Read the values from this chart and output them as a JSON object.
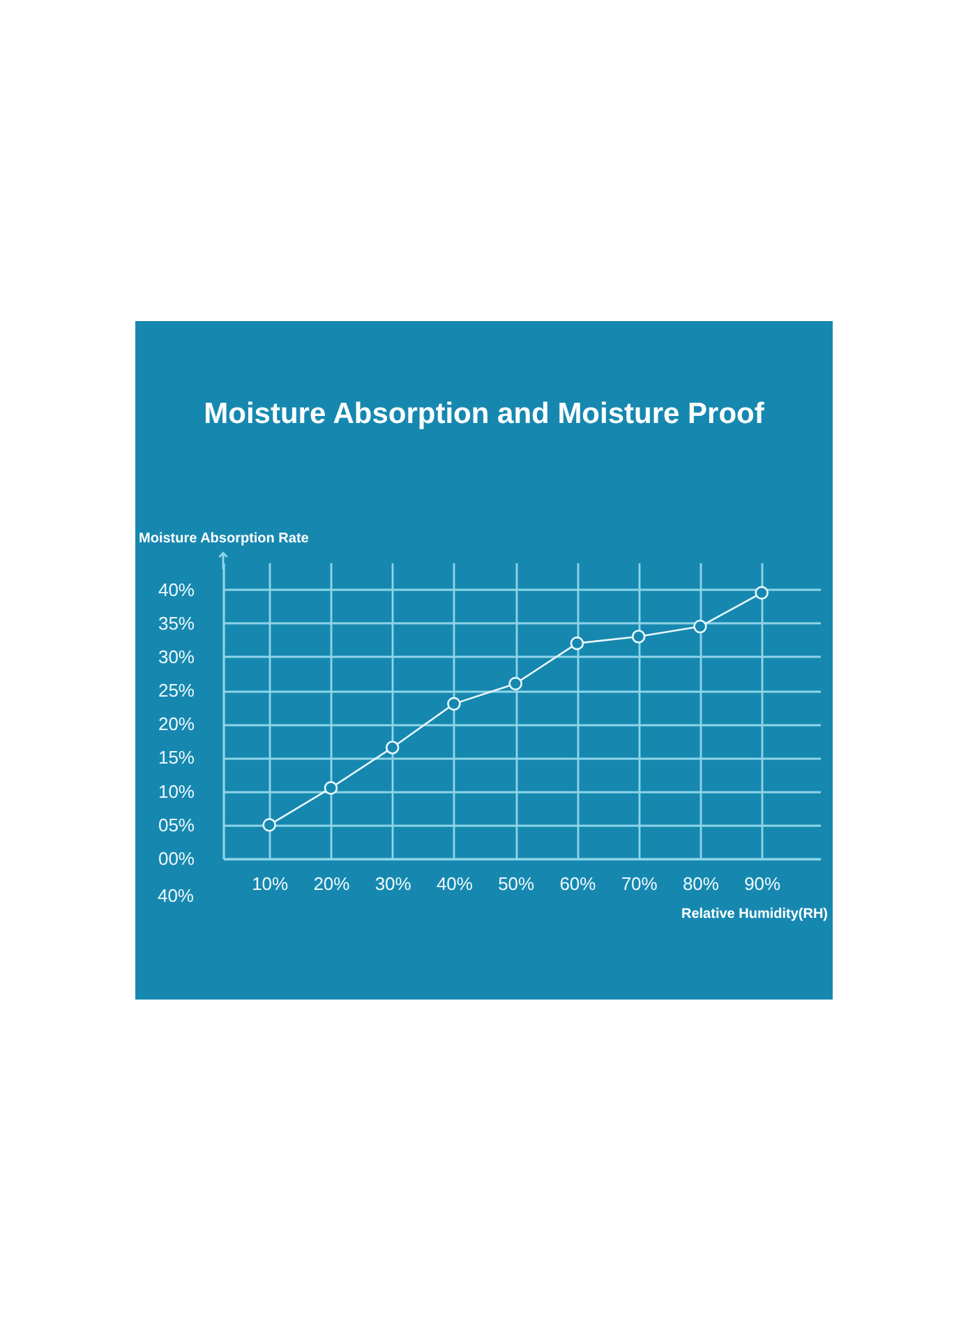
{
  "chart_data": {
    "type": "line",
    "title": "Moisture Absorption and Moisture Proof",
    "xlabel": "Relative Humidity(RH)",
    "ylabel": "Moisture Absorption Rate",
    "x": [
      10,
      20,
      30,
      40,
      50,
      60,
      70,
      80,
      90
    ],
    "series": [
      {
        "color": "#eaf8fc",
        "values": [
          5,
          10.5,
          16.5,
          23,
          26,
          32,
          33,
          34.5,
          39.5
        ]
      }
    ],
    "xlim": [
      2.5,
      99.5
    ],
    "ylim": [
      0,
      44
    ],
    "xticks": [
      {
        "value": 10,
        "label": "10%"
      },
      {
        "value": 20,
        "label": "20%"
      },
      {
        "value": 30,
        "label": "30%"
      },
      {
        "value": 40,
        "label": "40%"
      },
      {
        "value": 50,
        "label": "50%"
      },
      {
        "value": 60,
        "label": "60%"
      },
      {
        "value": 70,
        "label": "70%"
      },
      {
        "value": 80,
        "label": "80%"
      },
      {
        "value": 90,
        "label": "90%"
      }
    ],
    "yticks": [
      {
        "value": 0,
        "label": "00%"
      },
      {
        "value": 5,
        "label": "05%"
      },
      {
        "value": 10,
        "label": "10%"
      },
      {
        "value": 15,
        "label": "15%"
      },
      {
        "value": 20,
        "label": "20%"
      },
      {
        "value": 25,
        "label": "25%"
      },
      {
        "value": 30,
        "label": "30%"
      },
      {
        "value": 35,
        "label": "35%"
      },
      {
        "value": 40,
        "label": "40%"
      }
    ],
    "grid": true,
    "marker": "circle",
    "annotations": [
      "40%"
    ]
  }
}
